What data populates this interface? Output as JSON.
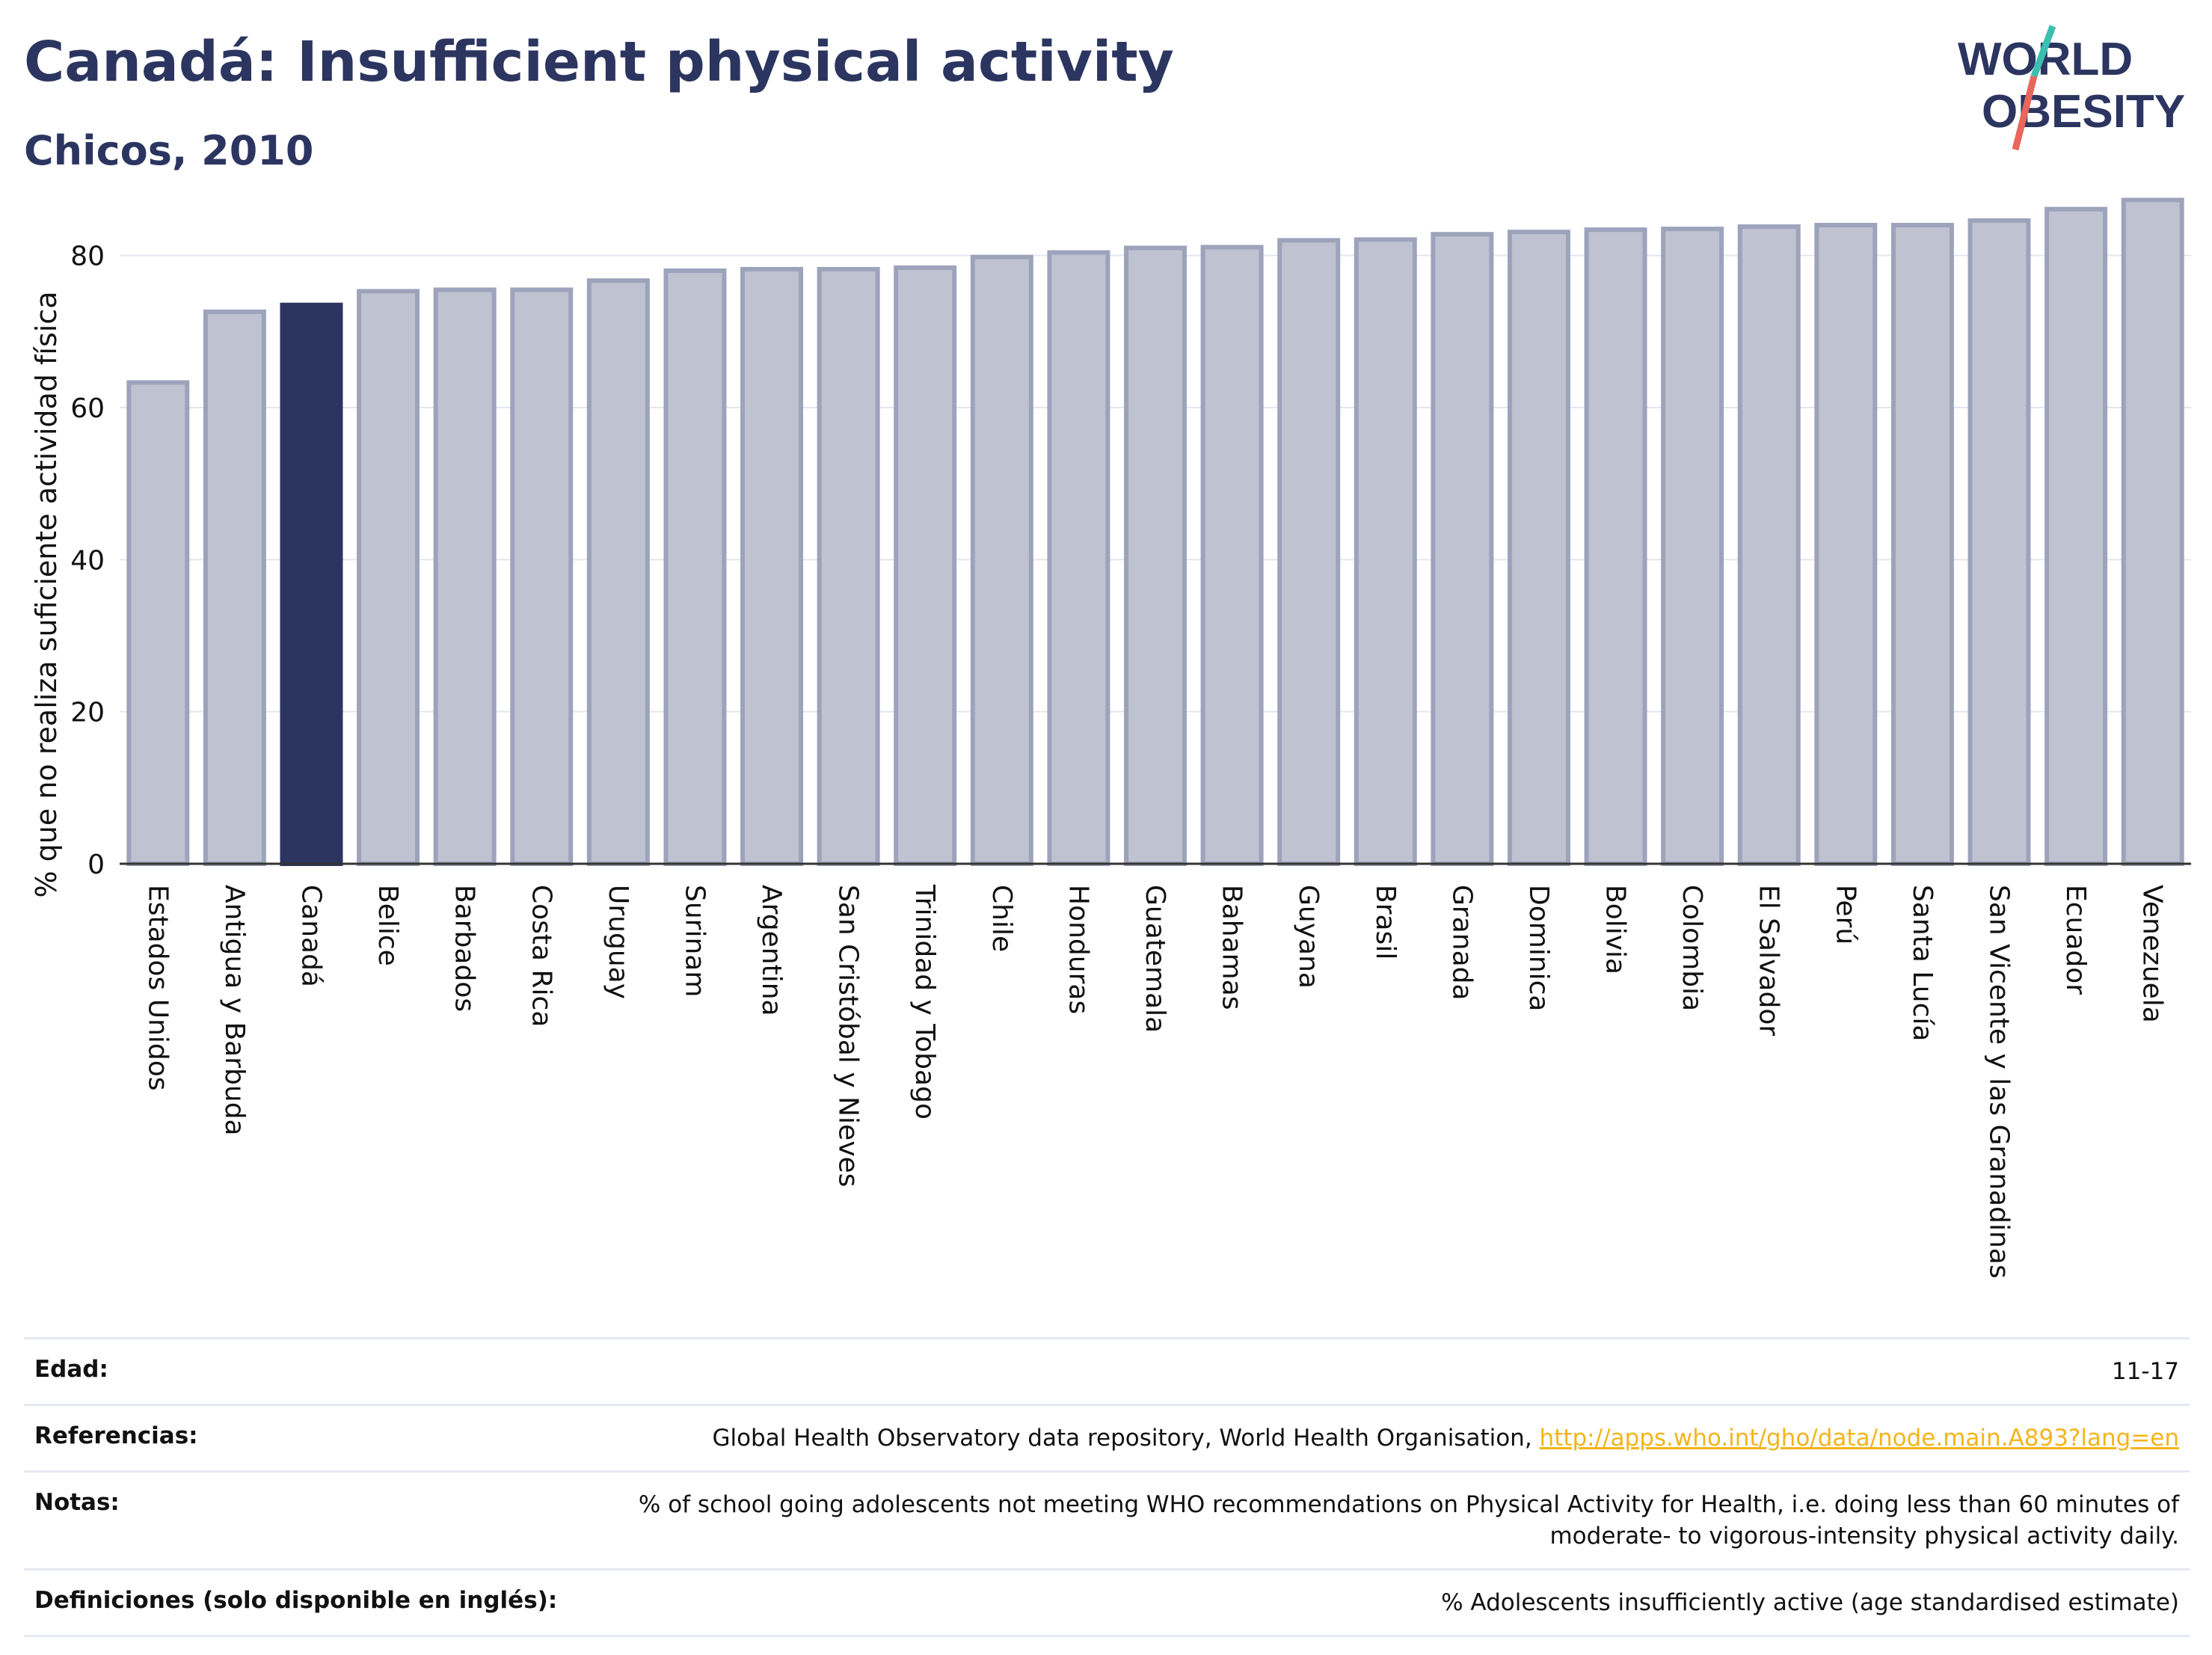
{
  "header": {
    "title": "Canadá: Insufficient physical activity",
    "subtitle": "Chicos, 2010"
  },
  "logo": {
    "line1": "WORLD",
    "line2": "OBESITY",
    "colors": {
      "text": "#2b3560",
      "slash_top": "#3bbfb0",
      "slash_bottom": "#e8665c"
    }
  },
  "colors": {
    "bar": "#bec2d1",
    "bar_border": "#9da3bb",
    "highlight": "#2b3560",
    "grid": "#e4e6ee",
    "axis": "#333333"
  },
  "chart_data": {
    "type": "bar",
    "title": "Canadá: Insufficient physical activity",
    "subtitle": "Chicos, 2010",
    "xlabel": "",
    "ylabel": "% que no realiza suficiente actividad física",
    "ylim": [
      0,
      90
    ],
    "yticks": [
      0,
      20,
      40,
      60,
      80
    ],
    "grid": true,
    "highlight": "Canadá",
    "categories": [
      "Estados Unidos",
      "Antigua y Barbuda",
      "Canadá",
      "Belice",
      "Barbados",
      "Costa Rica",
      "Uruguay",
      "Surinam",
      "Argentina",
      "San Cristóbal y Nieves",
      "Trinidad y Tobago",
      "Chile",
      "Honduras",
      "Guatemala",
      "Bahamas",
      "Guyana",
      "Brasil",
      "Granada",
      "Dominica",
      "Bolivia",
      "Colombia",
      "El Salvador",
      "Perú",
      "Santa Lucía",
      "San Vicente y las Granadinas",
      "Ecuador",
      "Venezuela"
    ],
    "values": [
      63.3,
      72.6,
      73.5,
      75.3,
      75.5,
      75.5,
      76.7,
      78.0,
      78.2,
      78.2,
      78.4,
      79.8,
      80.4,
      81.0,
      81.1,
      82.0,
      82.1,
      82.8,
      83.1,
      83.4,
      83.5,
      83.8,
      84.0,
      84.0,
      84.6,
      86.1,
      87.3
    ]
  },
  "info": {
    "rows": [
      {
        "label": "Edad:",
        "value": "11-17"
      },
      {
        "label": "Referencias:",
        "value": "Global Health Observatory data repository, World Health Organisation, ",
        "link": "http://apps.who.int/gho/data/node.main.A893?lang=en"
      },
      {
        "label": "Notas:",
        "value": "% of school going adolescents not meeting WHO recommendations on Physical Activity for Health, i.e. doing less than 60 minutes of moderate- to vigorous-intensity physical activity daily."
      },
      {
        "label": "Definiciones (solo disponible en inglés):",
        "value": "% Adolescents insufficiently active (age standardised estimate)"
      }
    ]
  }
}
